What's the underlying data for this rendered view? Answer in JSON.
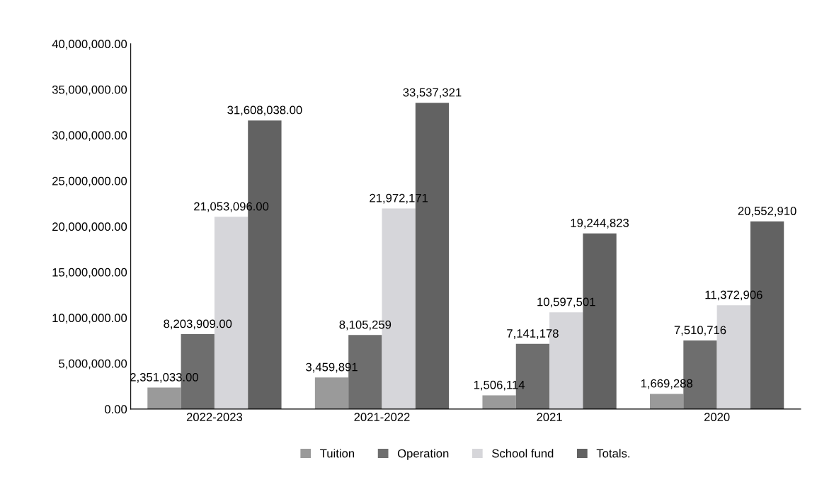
{
  "chart_data": {
    "type": "bar",
    "categories": [
      "2022-2023",
      "2021-2022",
      "2021",
      "2020"
    ],
    "series": [
      {
        "name": "Tuition",
        "color": "#9a9a9a",
        "values": [
          2351033,
          3459891,
          1506114,
          1669288
        ],
        "value_labels": [
          "2,351,033.00",
          "3,459,891",
          "1,506,114",
          "1,669,288"
        ]
      },
      {
        "name": "Operation",
        "color": "#6e6e6e",
        "values": [
          8203909,
          8105259,
          7141178,
          7510716
        ],
        "value_labels": [
          "8,203,909.00",
          "8,105,259",
          "7,141,178",
          "7,510,716"
        ]
      },
      {
        "name": "School fund",
        "color": "#d6d6da",
        "values": [
          21053096,
          21972171,
          10597501,
          11372906
        ],
        "value_labels": [
          "21,053,096.00",
          "21,972,171",
          "10,597,501",
          "11,372,906"
        ]
      },
      {
        "name": "Totals.",
        "color": "#626262",
        "values": [
          31608038,
          33537321,
          19244823,
          20552910
        ],
        "value_labels": [
          "31,608,038.00",
          "33,537,321",
          "19,244,823",
          "20,552,910"
        ]
      }
    ],
    "ylim": [
      0,
      40000000
    ],
    "yticks": [
      {
        "value": 0,
        "label": "0.00"
      },
      {
        "value": 5000000,
        "label": "5,000,000.00"
      },
      {
        "value": 10000000,
        "label": "10,000,000.00"
      },
      {
        "value": 15000000,
        "label": "15,000,000.00"
      },
      {
        "value": 20000000,
        "label": "20,000,000.00"
      },
      {
        "value": 25000000,
        "label": "25,000,000.00"
      },
      {
        "value": 30000000,
        "label": "30,000,000.00"
      },
      {
        "value": 35000000,
        "label": "35,000,000.00"
      },
      {
        "value": 40000000,
        "label": "40,000,000.00"
      }
    ],
    "grid": false,
    "legend": "bottom"
  }
}
